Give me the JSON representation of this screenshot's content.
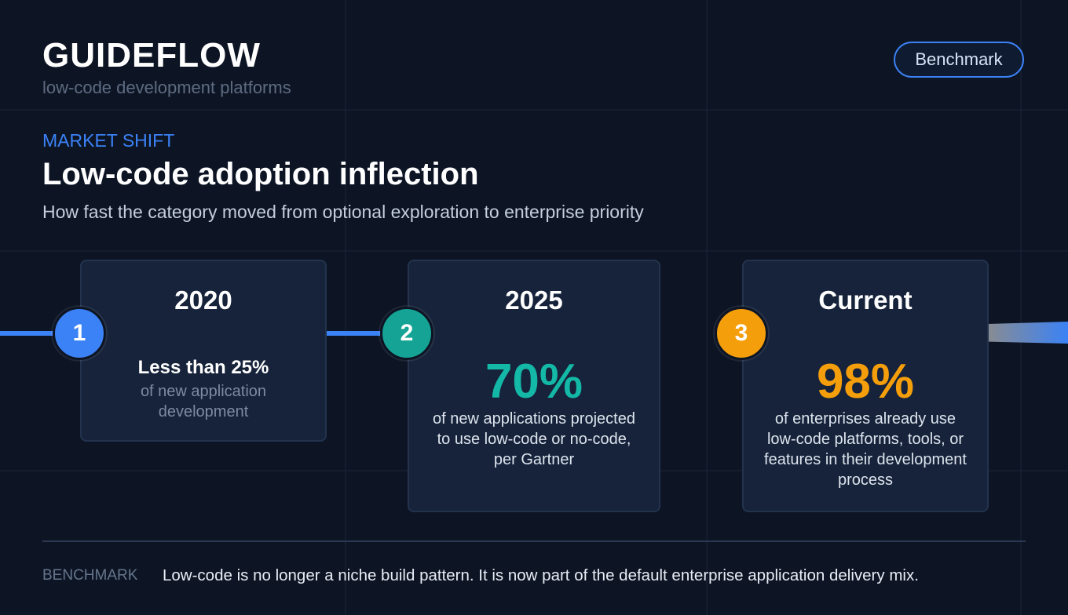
{
  "header": {
    "brand": "GUIDEFLOW",
    "subtitle": "low-code development platforms",
    "button": "Benchmark"
  },
  "section": {
    "eyebrow": "MARKET SHIFT",
    "title": "Low-code adoption inflection",
    "subtitle": "How fast the category moved from optional exploration to enterprise priority"
  },
  "steps": [
    {
      "number": "1",
      "label": "2020",
      "headline": "Less than 25%",
      "description": "of new application development"
    },
    {
      "number": "2",
      "label": "2025",
      "headline": "70%",
      "description": "of new applications projected to use low-code or no-code, per Gartner"
    },
    {
      "number": "3",
      "label": "Current",
      "headline": "98%",
      "description": "of enterprises already use low-code platforms, tools, or features in their development process"
    }
  ],
  "footer": {
    "label": "BENCHMARK",
    "text": "Low-code is no longer a niche build pattern. It is now part of the default enterprise application delivery mix."
  }
}
